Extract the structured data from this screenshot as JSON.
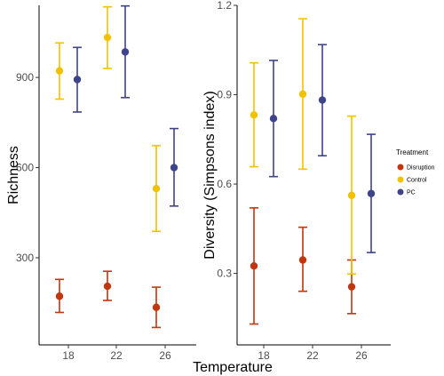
{
  "chart_data": [
    {
      "type": "errorbar",
      "xlabel": "",
      "ylabel": "Richness",
      "ylim": [
        10,
        1140
      ],
      "yticks": [
        300,
        600,
        900
      ],
      "xticks": [
        18,
        22,
        26
      ],
      "series": [
        {
          "name": "Disruption",
          "color": "#c0360f",
          "points": [
            {
              "x": 18,
              "y": 172,
              "low": 118,
              "high": 228
            },
            {
              "x": 22,
              "y": 205,
              "low": 158,
              "high": 255
            },
            {
              "x": 26,
              "y": 135,
              "low": 68,
              "high": 202
            }
          ]
        },
        {
          "name": "Control",
          "color": "#f2c200",
          "points": [
            {
              "x": 18,
              "y": 922,
              "low": 828,
              "high": 1015
            },
            {
              "x": 22,
              "y": 1033,
              "low": 930,
              "high": 1135
            },
            {
              "x": 26,
              "y": 530,
              "low": 388,
              "high": 673
            }
          ]
        },
        {
          "name": "PC",
          "color": "#3d4489",
          "points": [
            {
              "x": 18,
              "y": 893,
              "low": 785,
              "high": 1000
            },
            {
              "x": 22,
              "y": 985,
              "low": 833,
              "high": 1138
            },
            {
              "x": 26,
              "y": 600,
              "low": 472,
              "high": 730
            }
          ]
        }
      ]
    },
    {
      "type": "errorbar",
      "xlabel": "",
      "ylabel": "Diversity (Simpsons index)",
      "ylim": [
        0.06,
        1.2
      ],
      "yticks": [
        0.3,
        0.6,
        0.9,
        1.2
      ],
      "xticks": [
        18,
        22,
        26
      ],
      "series": [
        {
          "name": "Disruption",
          "color": "#c0360f",
          "points": [
            {
              "x": 18,
              "y": 0.325,
              "low": 0.13,
              "high": 0.52
            },
            {
              "x": 22,
              "y": 0.345,
              "low": 0.24,
              "high": 0.455
            },
            {
              "x": 26,
              "y": 0.255,
              "low": 0.165,
              "high": 0.345
            }
          ]
        },
        {
          "name": "Control",
          "color": "#f2c200",
          "points": [
            {
              "x": 18,
              "y": 0.832,
              "low": 0.658,
              "high": 1.007
            },
            {
              "x": 22,
              "y": 0.902,
              "low": 0.65,
              "high": 1.155
            },
            {
              "x": 26,
              "y": 0.562,
              "low": 0.298,
              "high": 0.828
            }
          ]
        },
        {
          "name": "PC",
          "color": "#3d4489",
          "points": [
            {
              "x": 18,
              "y": 0.82,
              "low": 0.625,
              "high": 1.015
            },
            {
              "x": 22,
              "y": 0.882,
              "low": 0.695,
              "high": 1.068
            },
            {
              "x": 26,
              "y": 0.568,
              "low": 0.37,
              "high": 0.767
            }
          ]
        }
      ]
    }
  ],
  "shared": {
    "xlabel": "Temperature",
    "legend": {
      "title": "Treatment",
      "placement": "right",
      "items": [
        {
          "label": "Disruption",
          "color": "#c0360f"
        },
        {
          "label": "Control",
          "color": "#f2c200"
        },
        {
          "label": "PC",
          "color": "#3d4489"
        }
      ]
    },
    "grid": false
  }
}
